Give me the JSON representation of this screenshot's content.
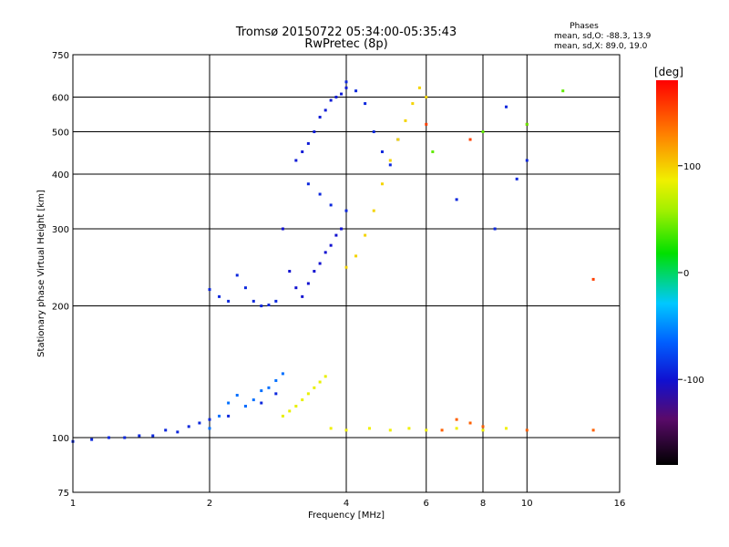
{
  "chart_data": {
    "type": "scatter",
    "title": "Tromsø 20150722 05:34:00-05:35:43",
    "subtitle": "RwPretec (8p)",
    "xlabel": "Frequency [MHz]",
    "ylabel": "Stationary phase Virtual Height [km]",
    "x_scale": "log",
    "y_scale": "log",
    "xlim": [
      1,
      16
    ],
    "ylim": [
      75,
      750
    ],
    "x_ticks": [
      1,
      2,
      4,
      6,
      8,
      10,
      16
    ],
    "y_ticks": [
      75,
      100,
      200,
      300,
      400,
      500,
      600,
      750
    ],
    "grid": true,
    "stats": {
      "title": "Phases",
      "line1": "mean, sd,O:  -88.3,  13.9",
      "line2": "mean, sd,X:   89.0,  19.0"
    },
    "colorbar": {
      "label": "[deg]",
      "min": -180,
      "max": 180,
      "ticks": [
        100,
        0,
        -100
      ]
    },
    "series": [
      {
        "phase": -100,
        "x": [
          1.0,
          1.1,
          1.2,
          1.3,
          1.4,
          1.5,
          1.6,
          1.7,
          1.8,
          1.9,
          2.0,
          2.2,
          2.4,
          2.6,
          2.8
        ],
        "y": [
          98,
          99,
          100,
          100,
          101,
          101,
          104,
          103,
          106,
          108,
          110,
          112,
          118,
          120,
          126
        ]
      },
      {
        "phase": -70,
        "x": [
          2.0,
          2.1,
          2.2,
          2.3,
          2.4,
          2.5,
          2.6,
          2.7,
          2.8,
          2.9
        ],
        "y": [
          105,
          112,
          120,
          125,
          118,
          122,
          128,
          130,
          135,
          140
        ]
      },
      {
        "phase": -100,
        "x": [
          2.0,
          2.1,
          2.2,
          2.3,
          2.4,
          2.5,
          2.6,
          2.7,
          2.8
        ],
        "y": [
          218,
          210,
          205,
          235,
          220,
          205,
          200,
          201,
          205
        ]
      },
      {
        "phase": -110,
        "x": [
          2.9,
          3.0,
          3.1,
          3.2,
          3.3,
          3.4,
          3.5,
          3.6,
          3.7,
          3.8,
          3.9
        ],
        "y": [
          300,
          240,
          220,
          210,
          225,
          240,
          250,
          265,
          275,
          290,
          300
        ]
      },
      {
        "phase": -105,
        "x": [
          3.1,
          3.2,
          3.3,
          3.4,
          3.5,
          3.6,
          3.7,
          3.8,
          3.9,
          4.0
        ],
        "y": [
          430,
          450,
          470,
          500,
          540,
          560,
          590,
          600,
          610,
          630
        ]
      },
      {
        "phase": -100,
        "x": [
          3.3,
          3.5,
          3.7,
          4.0
        ],
        "y": [
          380,
          360,
          340,
          330
        ]
      },
      {
        "phase": -100,
        "x": [
          4.0,
          4.2,
          4.4,
          4.6,
          4.8,
          5.0,
          5.2
        ],
        "y": [
          650,
          620,
          580,
          500,
          450,
          420,
          480
        ]
      },
      {
        "phase": 110,
        "x": [
          4.0,
          4.2,
          4.4,
          4.6,
          4.8,
          5.0,
          5.2,
          5.4,
          5.6,
          5.8,
          6.0
        ],
        "y": [
          245,
          260,
          290,
          330,
          380,
          430,
          480,
          530,
          580,
          630,
          600
        ]
      },
      {
        "phase": 95,
        "x": [
          2.9,
          3.0,
          3.1,
          3.2,
          3.3,
          3.4,
          3.5,
          3.6
        ],
        "y": [
          112,
          115,
          118,
          122,
          126,
          130,
          134,
          138
        ]
      },
      {
        "phase": 100,
        "x": [
          3.7,
          4.0,
          4.5,
          5.0,
          5.5,
          6.0,
          7.0,
          8.0,
          9.0
        ],
        "y": [
          105,
          104,
          105,
          104,
          105,
          104,
          105,
          104,
          105
        ]
      },
      {
        "phase": 150,
        "x": [
          6.5,
          7.0,
          7.5,
          8.0,
          10.0,
          14.0
        ],
        "y": [
          104,
          110,
          108,
          106,
          104,
          104
        ]
      },
      {
        "phase": 160,
        "x": [
          6.0,
          7.5,
          10.0,
          14.0
        ],
        "y": [
          520,
          480,
          520,
          230
        ]
      },
      {
        "phase": 30,
        "x": [
          6.2,
          8.0,
          10.0,
          12.0
        ],
        "y": [
          450,
          500,
          520,
          620
        ]
      },
      {
        "phase": -100,
        "x": [
          7.0,
          8.5,
          9.0,
          9.5,
          10.0
        ],
        "y": [
          350,
          300,
          570,
          390,
          430
        ]
      }
    ]
  }
}
